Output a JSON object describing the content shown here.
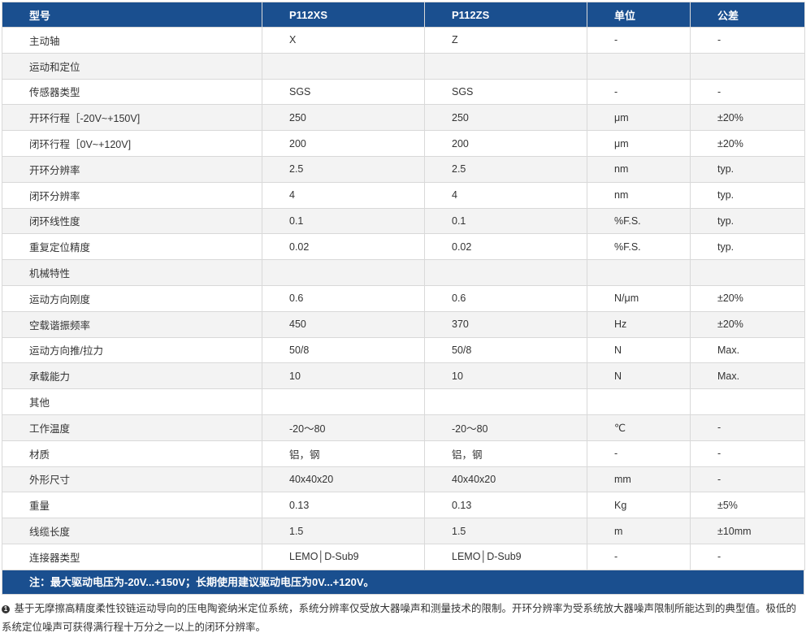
{
  "table": {
    "headers": [
      "型号",
      "P112XS",
      "P112ZS",
      "单位",
      "公差"
    ],
    "rows": [
      [
        "主动轴",
        "X",
        "Z",
        "-",
        "-"
      ],
      [
        "运动和定位",
        "",
        "",
        "",
        ""
      ],
      [
        "传感器类型",
        "SGS",
        "SGS",
        "-",
        "-"
      ],
      [
        "开环行程［-20V~+150V]",
        "250",
        "250",
        "μm",
        "±20%"
      ],
      [
        "闭环行程［0V~+120V]",
        "200",
        "200",
        "μm",
        "±20%"
      ],
      [
        "开环分辨率",
        "2.5",
        "2.5",
        "nm",
        "typ."
      ],
      [
        "闭环分辨率",
        "4",
        "4",
        "nm",
        "typ."
      ],
      [
        "闭环线性度",
        "0.1",
        "0.1",
        "%F.S.",
        "typ."
      ],
      [
        "重复定位精度",
        "0.02",
        "0.02",
        "%F.S.",
        "typ."
      ],
      [
        "机械特性",
        "",
        "",
        "",
        ""
      ],
      [
        "运动方向刚度",
        "0.6",
        "0.6",
        "N/μm",
        "±20%"
      ],
      [
        "空载谐振频率",
        "450",
        "370",
        "Hz",
        "±20%"
      ],
      [
        "运动方向推/拉力",
        "50/8",
        "50/8",
        "N",
        "Max."
      ],
      [
        "承载能力",
        "10",
        "10",
        "N",
        "Max."
      ],
      [
        "其他",
        "",
        "",
        "",
        ""
      ],
      [
        "工作温度",
        "-20～80",
        "-20～80",
        "℃",
        "-"
      ],
      [
        "材质",
        "铝，钢",
        "铝，钢",
        "-",
        "-"
      ],
      [
        "外形尺寸",
        "40x40x20",
        "40x40x20",
        "mm",
        "-"
      ],
      [
        "重量",
        "0.13",
        "0.13",
        "Kg",
        "±5%"
      ],
      [
        "线缆长度",
        "1.5",
        "1.5",
        "m",
        "±10mm"
      ],
      [
        "连接器类型",
        "LEMO│D-Sub9",
        "LEMO│D-Sub9",
        "-",
        "-"
      ]
    ]
  },
  "note": "注：最大驱动电压为-20V...+150V；长期使用建议驱动电压为0V...+120V。",
  "footnote": {
    "bullet": "1",
    "text": "基于无摩擦高精度柔性铰链运动导向的压电陶瓷纳米定位系统，系统分辨率仅受放大器噪声和测量技术的限制。开环分辨率为受系统放大器噪声限制所能达到的典型值。极低的系统定位噪声可获得满行程十万分之一以上的闭环分辨率。"
  }
}
